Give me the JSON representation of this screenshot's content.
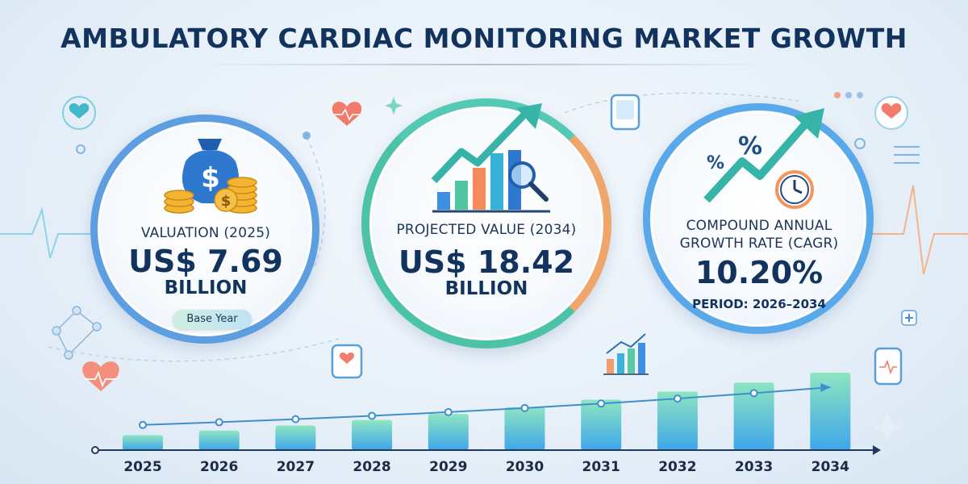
{
  "title": "AMBULATORY CARDIAC MONITORING MARKET GROWTH",
  "cards": [
    {
      "label": "VALUATION (2025)",
      "value": "US$ 7.69",
      "unit": "BILLION",
      "badge": "Base Year"
    },
    {
      "label": "PROJECTED VALUE (2034)",
      "value": "US$ 18.42",
      "unit": "BILLION"
    },
    {
      "label_line1": "COMPOUND ANNUAL",
      "label_line2": "GROWTH RATE (CAGR)",
      "value": "10.20%",
      "period": "PERIOD: 2026–2034"
    }
  ],
  "icons": [
    "money-bag-icon",
    "coins-icon",
    "bar-chart-growth-icon",
    "magnifier-icon",
    "percent-icon",
    "clock-icon",
    "heart-icon",
    "heartbeat-monitor-icon",
    "tablet-icon",
    "network-icon"
  ],
  "colors": {
    "title": "#13335f",
    "accent_blue": "#5c9ee0",
    "accent_teal": "#4cc3a6",
    "accent_orange": "#f0a56a",
    "bar_top": "#8ee5c0",
    "bar_bottom": "#3fa6ea"
  },
  "chart_data": {
    "type": "bar",
    "categories": [
      "2025",
      "2026",
      "2027",
      "2028",
      "2029",
      "2030",
      "2031",
      "2032",
      "2033",
      "2034"
    ],
    "values": [
      7.69,
      8.47,
      9.34,
      10.29,
      11.34,
      12.5,
      13.77,
      15.18,
      16.73,
      18.42
    ],
    "title": "",
    "xlabel": "",
    "ylabel": "",
    "trend_line": true,
    "grid": false
  }
}
